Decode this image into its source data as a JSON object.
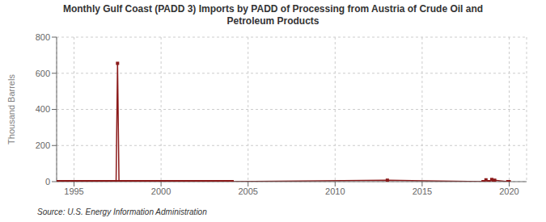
{
  "chart_data": {
    "type": "line",
    "title": "Monthly Gulf Coast (PADD 3) Imports by PADD of Processing from Austria of Crude Oil and\nPetroleum Products",
    "ylabel": "Thousand Barrels",
    "source": "Source: U.S. Energy Information Administration",
    "xlim": [
      1994.0,
      2021.0
    ],
    "ylim": [
      0,
      800
    ],
    "yticks": [
      0,
      200,
      400,
      600,
      800
    ],
    "xticks": [
      1995,
      2000,
      2005,
      2010,
      2015,
      2020
    ],
    "grid": true,
    "x": [
      1994.083,
      1994.167,
      1994.25,
      1994.333,
      1994.417,
      1994.5,
      1994.583,
      1994.667,
      1994.75,
      1994.833,
      1994.917,
      1995.0,
      1995.083,
      1995.167,
      1995.25,
      1995.333,
      1995.417,
      1995.5,
      1995.583,
      1995.667,
      1995.75,
      1995.833,
      1995.917,
      1996.0,
      1996.083,
      1996.167,
      1996.25,
      1996.333,
      1996.417,
      1996.5,
      1996.583,
      1996.667,
      1996.75,
      1996.833,
      1996.917,
      1997.0,
      1997.083,
      1997.167,
      1997.25,
      1997.333,
      1997.417,
      1997.5,
      1997.583,
      1997.667,
      1997.75,
      1997.833,
      1997.917,
      1998.0,
      1998.083,
      1998.167,
      1998.25,
      1998.333,
      1998.417,
      1998.5,
      1998.583,
      1998.667,
      1998.75,
      1998.833,
      1998.917,
      1999.0,
      1999.083,
      1999.167,
      1999.25,
      1999.333,
      1999.417,
      1999.5,
      1999.583,
      1999.667,
      1999.75,
      1999.833,
      1999.917,
      2000.0,
      2000.083,
      2000.167,
      2000.25,
      2000.333,
      2000.417,
      2000.5,
      2000.583,
      2000.667,
      2000.75,
      2000.833,
      2000.917,
      2001.0,
      2001.083,
      2001.167,
      2001.25,
      2001.333,
      2001.417,
      2001.5,
      2001.583,
      2001.667,
      2001.75,
      2001.833,
      2001.917,
      2002.0,
      2002.083,
      2002.167,
      2002.25,
      2002.333,
      2002.417,
      2002.5,
      2002.583,
      2002.667,
      2002.75,
      2002.833,
      2002.917,
      2003.0,
      2003.083,
      2003.167,
      2003.25,
      2003.333,
      2003.417,
      2003.5,
      2003.583,
      2003.667,
      2003.75,
      2003.833,
      2003.917,
      2004.0,
      2004.083,
      2013.0,
      2018.5,
      2018.667,
      2018.833,
      2019.0,
      2019.083,
      2019.167,
      2019.917,
      2020.0
    ],
    "series": [
      {
        "color": "#8b1a1a",
        "marker": "square",
        "line_style": "solid",
        "values": [
          0,
          0,
          0,
          0,
          0,
          0,
          0,
          0,
          0,
          0,
          0,
          0,
          0,
          0,
          0,
          0,
          0,
          0,
          0,
          0,
          0,
          0,
          0,
          0,
          0,
          0,
          0,
          0,
          0,
          0,
          0,
          0,
          0,
          0,
          0,
          0,
          0,
          0,
          0,
          0,
          0,
          655,
          0,
          0,
          0,
          0,
          0,
          0,
          0,
          0,
          0,
          0,
          0,
          0,
          0,
          0,
          0,
          0,
          0,
          0,
          0,
          0,
          0,
          0,
          0,
          0,
          0,
          0,
          0,
          0,
          0,
          0,
          0,
          0,
          0,
          0,
          0,
          0,
          0,
          0,
          0,
          0,
          0,
          0,
          0,
          0,
          0,
          0,
          0,
          0,
          0,
          0,
          0,
          0,
          0,
          0,
          0,
          0,
          0,
          0,
          0,
          0,
          0,
          0,
          0,
          0,
          0,
          0,
          0,
          0,
          0,
          0,
          0,
          0,
          0,
          0,
          0,
          0,
          0,
          0,
          0,
          8,
          0,
          10,
          0,
          12,
          0,
          8,
          0,
          0
        ]
      }
    ]
  }
}
